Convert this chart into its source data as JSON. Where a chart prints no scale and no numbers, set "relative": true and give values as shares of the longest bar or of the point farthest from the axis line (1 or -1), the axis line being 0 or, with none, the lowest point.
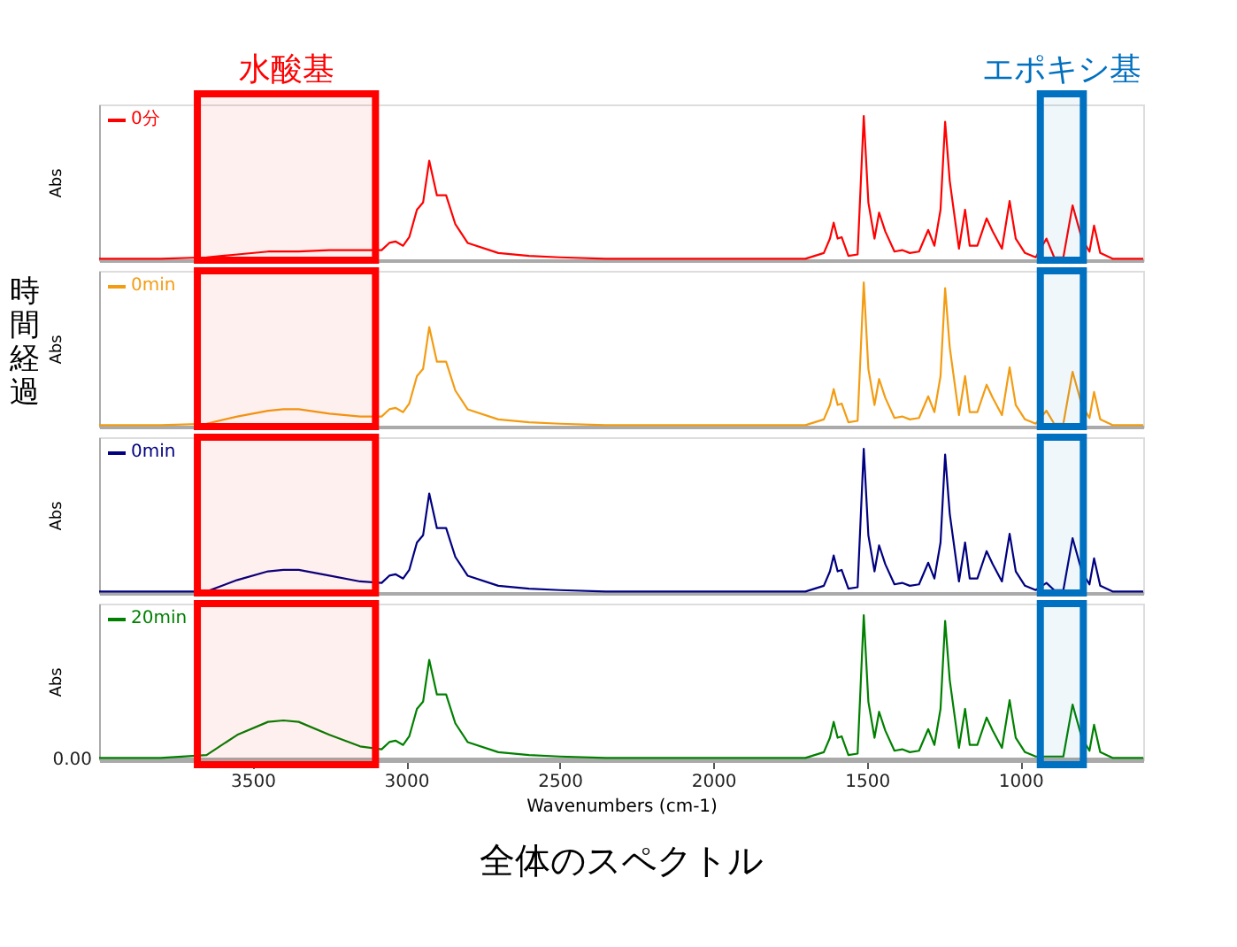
{
  "chart_data": [
    {
      "type": "line",
      "ylabel": "Abs",
      "relative": true,
      "xlim": [
        4000,
        600
      ],
      "tick_labels": false,
      "grid": false,
      "x": [
        4000,
        3800,
        3650,
        3550,
        3450,
        3400,
        3350,
        3250,
        3150,
        3080,
        3055,
        3035,
        3010,
        2990,
        2965,
        2945,
        2925,
        2900,
        2870,
        2840,
        2800,
        2700,
        2600,
        2500,
        2350,
        2000,
        1800,
        1700,
        1640,
        1620,
        1608,
        1595,
        1582,
        1560,
        1530,
        1510,
        1495,
        1475,
        1460,
        1440,
        1410,
        1385,
        1360,
        1330,
        1300,
        1280,
        1260,
        1245,
        1230,
        1200,
        1180,
        1165,
        1140,
        1110,
        1090,
        1060,
        1035,
        1015,
        985,
        950,
        915,
        890,
        860,
        830,
        800,
        775,
        760,
        740,
        700,
        600
      ],
      "series": [
        {
          "name": "0分",
          "color": "#ff0000",
          "values": [
            0.01,
            0.01,
            0.02,
            0.04,
            0.06,
            0.06,
            0.06,
            0.07,
            0.07,
            0.07,
            0.12,
            0.13,
            0.1,
            0.16,
            0.35,
            0.4,
            0.69,
            0.45,
            0.45,
            0.25,
            0.12,
            0.05,
            0.03,
            0.02,
            0.01,
            0.01,
            0.01,
            0.01,
            0.05,
            0.15,
            0.26,
            0.15,
            0.16,
            0.03,
            0.04,
            1.0,
            0.4,
            0.15,
            0.33,
            0.2,
            0.06,
            0.07,
            0.05,
            0.06,
            0.21,
            0.1,
            0.35,
            0.96,
            0.55,
            0.08,
            0.35,
            0.1,
            0.1,
            0.29,
            0.2,
            0.08,
            0.41,
            0.15,
            0.05,
            0.02,
            0.15,
            0.02,
            0.02,
            0.38,
            0.15,
            0.06,
            0.24,
            0.05,
            0.01,
            0.01
          ]
        }
      ],
      "bands": [
        {
          "axis": "x",
          "from": 3680,
          "to": 3100,
          "label": "水酸基",
          "color": "#ff0000"
        },
        {
          "axis": "x",
          "from": 935,
          "to": 795,
          "label": "エポキシ基",
          "color": "#0070c0"
        }
      ]
    },
    {
      "type": "line",
      "ylabel": "Abs",
      "relative": true,
      "xlim": [
        4000,
        600
      ],
      "tick_labels": false,
      "grid": false,
      "x": [
        4000,
        3800,
        3650,
        3550,
        3450,
        3400,
        3350,
        3250,
        3150,
        3080,
        3055,
        3035,
        3010,
        2990,
        2965,
        2945,
        2925,
        2900,
        2870,
        2840,
        2800,
        2700,
        2600,
        2500,
        2350,
        2000,
        1800,
        1700,
        1640,
        1620,
        1608,
        1595,
        1582,
        1560,
        1530,
        1510,
        1495,
        1475,
        1460,
        1440,
        1410,
        1385,
        1360,
        1330,
        1300,
        1280,
        1260,
        1245,
        1230,
        1200,
        1180,
        1165,
        1140,
        1110,
        1090,
        1060,
        1035,
        1015,
        985,
        950,
        915,
        890,
        860,
        830,
        800,
        775,
        760,
        740,
        700,
        600
      ],
      "series": [
        {
          "name": "0min",
          "color": "#f39c12",
          "values": [
            0.01,
            0.01,
            0.02,
            0.07,
            0.11,
            0.12,
            0.12,
            0.09,
            0.07,
            0.07,
            0.12,
            0.13,
            0.1,
            0.16,
            0.35,
            0.4,
            0.69,
            0.45,
            0.45,
            0.25,
            0.12,
            0.05,
            0.03,
            0.02,
            0.01,
            0.01,
            0.01,
            0.01,
            0.05,
            0.15,
            0.26,
            0.15,
            0.16,
            0.03,
            0.04,
            1.0,
            0.4,
            0.15,
            0.33,
            0.2,
            0.06,
            0.07,
            0.05,
            0.06,
            0.21,
            0.1,
            0.35,
            0.96,
            0.55,
            0.08,
            0.35,
            0.1,
            0.1,
            0.29,
            0.2,
            0.08,
            0.41,
            0.15,
            0.05,
            0.02,
            0.11,
            0.02,
            0.02,
            0.38,
            0.15,
            0.06,
            0.24,
            0.05,
            0.01,
            0.01
          ]
        }
      ],
      "bands": [
        {
          "axis": "x",
          "from": 3680,
          "to": 3100,
          "color": "#ff0000"
        },
        {
          "axis": "x",
          "from": 935,
          "to": 795,
          "color": "#0070c0"
        }
      ],
      "annotations": [
        "時間経過"
      ]
    },
    {
      "type": "line",
      "ylabel": "Abs",
      "relative": true,
      "xlim": [
        4000,
        600
      ],
      "tick_labels": false,
      "grid": false,
      "x": [
        4000,
        3800,
        3650,
        3550,
        3450,
        3400,
        3350,
        3250,
        3150,
        3080,
        3055,
        3035,
        3010,
        2990,
        2965,
        2945,
        2925,
        2900,
        2870,
        2840,
        2800,
        2700,
        2600,
        2500,
        2350,
        2000,
        1800,
        1700,
        1640,
        1620,
        1608,
        1595,
        1582,
        1560,
        1530,
        1510,
        1495,
        1475,
        1460,
        1440,
        1410,
        1385,
        1360,
        1330,
        1300,
        1280,
        1260,
        1245,
        1230,
        1200,
        1180,
        1165,
        1140,
        1110,
        1090,
        1060,
        1035,
        1015,
        985,
        950,
        915,
        890,
        860,
        830,
        800,
        775,
        760,
        740,
        700,
        600
      ],
      "series": [
        {
          "name": "0min",
          "color": "#000080",
          "values": [
            0.01,
            0.01,
            0.01,
            0.09,
            0.15,
            0.16,
            0.16,
            0.12,
            0.08,
            0.07,
            0.12,
            0.13,
            0.1,
            0.16,
            0.35,
            0.4,
            0.69,
            0.45,
            0.45,
            0.25,
            0.12,
            0.05,
            0.03,
            0.02,
            0.01,
            0.01,
            0.01,
            0.01,
            0.05,
            0.15,
            0.26,
            0.15,
            0.16,
            0.03,
            0.04,
            1.0,
            0.4,
            0.15,
            0.33,
            0.2,
            0.06,
            0.07,
            0.05,
            0.06,
            0.21,
            0.1,
            0.35,
            0.96,
            0.55,
            0.08,
            0.35,
            0.1,
            0.1,
            0.29,
            0.2,
            0.08,
            0.41,
            0.15,
            0.05,
            0.02,
            0.07,
            0.02,
            0.02,
            0.38,
            0.15,
            0.06,
            0.24,
            0.05,
            0.01,
            0.01
          ]
        }
      ],
      "bands": [
        {
          "axis": "x",
          "from": 3680,
          "to": 3100,
          "color": "#ff0000"
        },
        {
          "axis": "x",
          "from": 935,
          "to": 795,
          "color": "#0070c0"
        }
      ]
    },
    {
      "type": "line",
      "ylabel": "Abs",
      "xlabel": "Wavenumbers (cm-1)",
      "relative": true,
      "xlim": [
        4000,
        600
      ],
      "xticks": [
        3500,
        3000,
        2500,
        2000,
        1500,
        1000
      ],
      "tick_labels": "x",
      "grid": false,
      "x": [
        4000,
        3800,
        3650,
        3550,
        3450,
        3400,
        3350,
        3250,
        3150,
        3080,
        3055,
        3035,
        3010,
        2990,
        2965,
        2945,
        2925,
        2900,
        2870,
        2840,
        2800,
        2700,
        2600,
        2500,
        2350,
        2000,
        1800,
        1700,
        1640,
        1620,
        1608,
        1595,
        1582,
        1560,
        1530,
        1510,
        1495,
        1475,
        1460,
        1440,
        1410,
        1385,
        1360,
        1330,
        1300,
        1280,
        1260,
        1245,
        1230,
        1200,
        1180,
        1165,
        1140,
        1110,
        1090,
        1060,
        1035,
        1015,
        985,
        950,
        915,
        890,
        860,
        830,
        800,
        775,
        760,
        740,
        700,
        600
      ],
      "series": [
        {
          "name": "20min",
          "color": "#008000",
          "values": [
            0.01,
            0.01,
            0.03,
            0.17,
            0.26,
            0.27,
            0.26,
            0.17,
            0.09,
            0.07,
            0.12,
            0.13,
            0.1,
            0.16,
            0.35,
            0.4,
            0.69,
            0.45,
            0.45,
            0.25,
            0.12,
            0.05,
            0.03,
            0.02,
            0.01,
            0.01,
            0.01,
            0.01,
            0.05,
            0.15,
            0.26,
            0.15,
            0.16,
            0.03,
            0.04,
            1.0,
            0.4,
            0.15,
            0.33,
            0.2,
            0.06,
            0.07,
            0.05,
            0.06,
            0.21,
            0.1,
            0.35,
            0.96,
            0.55,
            0.08,
            0.35,
            0.1,
            0.1,
            0.29,
            0.2,
            0.08,
            0.41,
            0.15,
            0.05,
            0.02,
            0.02,
            0.02,
            0.02,
            0.38,
            0.15,
            0.06,
            0.24,
            0.05,
            0.01,
            0.01
          ]
        }
      ],
      "bands": [
        {
          "axis": "x",
          "from": 3680,
          "to": 3100,
          "color": "#ff0000"
        },
        {
          "axis": "x",
          "from": 935,
          "to": 795,
          "color": "#0070c0"
        }
      ],
      "annotations": [
        {
          "text": "0.00",
          "x": 4000,
          "y": 0
        },
        "全体のスペクトル"
      ]
    }
  ]
}
